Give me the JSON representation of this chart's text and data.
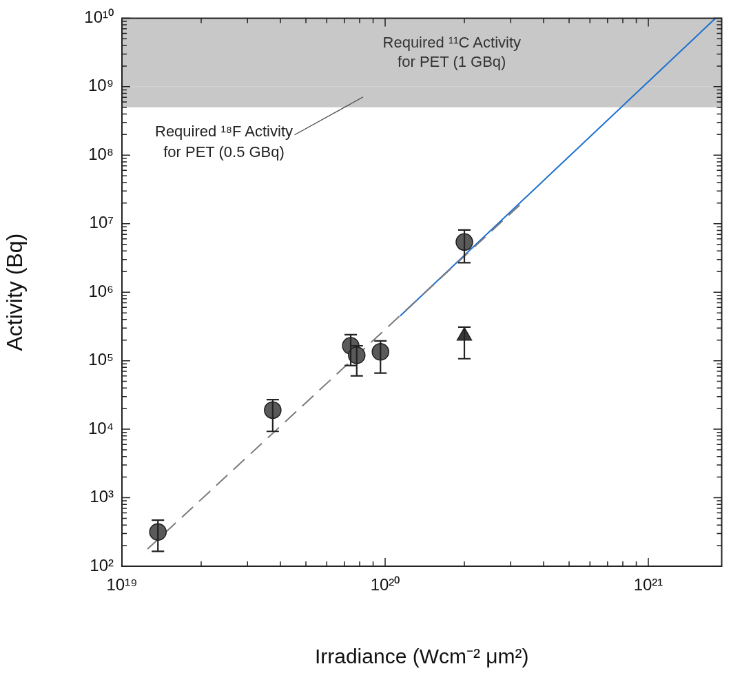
{
  "chart_data": {
    "type": "scatter",
    "xlabel": "Irradiance (Wcm⁻² μm²)",
    "ylabel": "Activity (Bq)",
    "log": "xy",
    "grid": false,
    "legend": false,
    "xlim": [
      1e+19,
      1.9e+21
    ],
    "ylim": [
      100,
      10000000000.0
    ],
    "xticks": [
      {
        "value": 1e+19,
        "label": "10¹⁹"
      },
      {
        "value": 2e+19,
        "label": null
      },
      {
        "value": 3e+19,
        "label": null
      },
      {
        "value": 4e+19,
        "label": null
      },
      {
        "value": 5e+19,
        "label": null
      },
      {
        "value": 6e+19,
        "label": null
      },
      {
        "value": 7e+19,
        "label": null
      },
      {
        "value": 8e+19,
        "label": null
      },
      {
        "value": 9e+19,
        "label": null
      },
      {
        "value": 1e+20,
        "label": "10²⁰"
      },
      {
        "value": 2e+20,
        "label": null
      },
      {
        "value": 3e+20,
        "label": null
      },
      {
        "value": 4e+20,
        "label": null
      },
      {
        "value": 5e+20,
        "label": null
      },
      {
        "value": 6e+20,
        "label": null
      },
      {
        "value": 7e+20,
        "label": null
      },
      {
        "value": 8e+20,
        "label": null
      },
      {
        "value": 9e+20,
        "label": null
      },
      {
        "value": 1e+21,
        "label": "10²¹"
      }
    ],
    "yticks": [
      {
        "value": 100,
        "label": "10²"
      },
      {
        "value": 200,
        "label": null
      },
      {
        "value": 300,
        "label": null
      },
      {
        "value": 400,
        "label": null
      },
      {
        "value": 500,
        "label": null
      },
      {
        "value": 600,
        "label": null
      },
      {
        "value": 700,
        "label": null
      },
      {
        "value": 800,
        "label": null
      },
      {
        "value": 900,
        "label": null
      },
      {
        "value": 1000,
        "label": "10³"
      },
      {
        "value": 2000,
        "label": null
      },
      {
        "value": 3000,
        "label": null
      },
      {
        "value": 4000,
        "label": null
      },
      {
        "value": 5000,
        "label": null
      },
      {
        "value": 6000,
        "label": null
      },
      {
        "value": 7000,
        "label": null
      },
      {
        "value": 8000,
        "label": null
      },
      {
        "value": 9000,
        "label": null
      },
      {
        "value": 10000.0,
        "label": "10⁴"
      },
      {
        "value": 20000.0,
        "label": null
      },
      {
        "value": 30000.0,
        "label": null
      },
      {
        "value": 40000.0,
        "label": null
      },
      {
        "value": 50000.0,
        "label": null
      },
      {
        "value": 60000.0,
        "label": null
      },
      {
        "value": 70000.0,
        "label": null
      },
      {
        "value": 80000.0,
        "label": null
      },
      {
        "value": 90000.0,
        "label": null
      },
      {
        "value": 100000.0,
        "label": "10⁵"
      },
      {
        "value": 200000.0,
        "label": null
      },
      {
        "value": 300000.0,
        "label": null
      },
      {
        "value": 400000.0,
        "label": null
      },
      {
        "value": 500000.0,
        "label": null
      },
      {
        "value": 600000.0,
        "label": null
      },
      {
        "value": 700000.0,
        "label": null
      },
      {
        "value": 800000.0,
        "label": null
      },
      {
        "value": 900000.0,
        "label": null
      },
      {
        "value": 1000000.0,
        "label": "10⁶"
      },
      {
        "value": 2000000.0,
        "label": null
      },
      {
        "value": 3000000.0,
        "label": null
      },
      {
        "value": 4000000.0,
        "label": null
      },
      {
        "value": 5000000.0,
        "label": null
      },
      {
        "value": 6000000.0,
        "label": null
      },
      {
        "value": 7000000.0,
        "label": null
      },
      {
        "value": 8000000.0,
        "label": null
      },
      {
        "value": 9000000.0,
        "label": null
      },
      {
        "value": 10000000.0,
        "label": "10⁷"
      },
      {
        "value": 20000000.0,
        "label": null
      },
      {
        "value": 30000000.0,
        "label": null
      },
      {
        "value": 40000000.0,
        "label": null
      },
      {
        "value": 50000000.0,
        "label": null
      },
      {
        "value": 60000000.0,
        "label": null
      },
      {
        "value": 70000000.0,
        "label": null
      },
      {
        "value": 80000000.0,
        "label": null
      },
      {
        "value": 90000000.0,
        "label": null
      },
      {
        "value": 100000000.0,
        "label": "10⁸"
      },
      {
        "value": 200000000.0,
        "label": null
      },
      {
        "value": 300000000.0,
        "label": null
      },
      {
        "value": 400000000.0,
        "label": null
      },
      {
        "value": 500000000.0,
        "label": null
      },
      {
        "value": 600000000.0,
        "label": null
      },
      {
        "value": 700000000.0,
        "label": null
      },
      {
        "value": 800000000.0,
        "label": null
      },
      {
        "value": 900000000.0,
        "label": null
      },
      {
        "value": 1000000000.0,
        "label": "10⁹"
      },
      {
        "value": 2000000000.0,
        "label": null
      },
      {
        "value": 3000000000.0,
        "label": null
      },
      {
        "value": 4000000000.0,
        "label": null
      },
      {
        "value": 5000000000.0,
        "label": null
      },
      {
        "value": 6000000000.0,
        "label": null
      },
      {
        "value": 7000000000.0,
        "label": null
      },
      {
        "value": 8000000000.0,
        "label": null
      },
      {
        "value": 9000000000.0,
        "label": null
      },
      {
        "value": 10000000000.0,
        "label": "10¹⁰"
      }
    ],
    "bands": [
      {
        "axis": "y",
        "from": 1000000000.0,
        "to": 10000000000.0,
        "label": "Required ¹¹C Activity for PET (1 GBq)",
        "color": "#c8c8c8"
      },
      {
        "axis": "y",
        "from": 500000000.0,
        "to": 1000000000.0,
        "label": "Required ¹⁸F Activity for PET (0.5 GBq)",
        "color": "#c8c8c8"
      }
    ],
    "series": [
      {
        "type": "scatter",
        "marker": "circle",
        "color": "#5a5a5a",
        "x": [
          1.37e+19,
          3.74e+19,
          7.4e+19,
          7.8e+19,
          9.6e+19,
          2e+20
        ],
        "values": [
          316,
          19000,
          165000,
          120000,
          135000,
          5400000
        ],
        "errors": [
          [
            165,
            470
          ],
          [
            9300,
            27000
          ],
          [
            85000,
            240000
          ],
          [
            60000,
            165000
          ],
          [
            66000,
            195000
          ],
          [
            2700000,
            8100000
          ]
        ]
      },
      {
        "type": "scatter",
        "marker": "triangle",
        "color": "#3a3a3a",
        "x": [
          2e+20
        ],
        "values": [
          230000
        ],
        "errors": [
          [
            107000,
            310000
          ]
        ]
      },
      {
        "type": "line",
        "line_style": "dashed",
        "color": "#7a7a7a",
        "x": [
          1.25e+19,
          3.24e+20
        ],
        "values": [
          178,
          18600000
        ]
      },
      {
        "type": "line",
        "line_style": "solid",
        "color": "#1a6fd0",
        "x": [
          1.14e+20,
          1.8e+21
        ],
        "values": [
          450000,
          10000000000.0
        ]
      }
    ]
  }
}
